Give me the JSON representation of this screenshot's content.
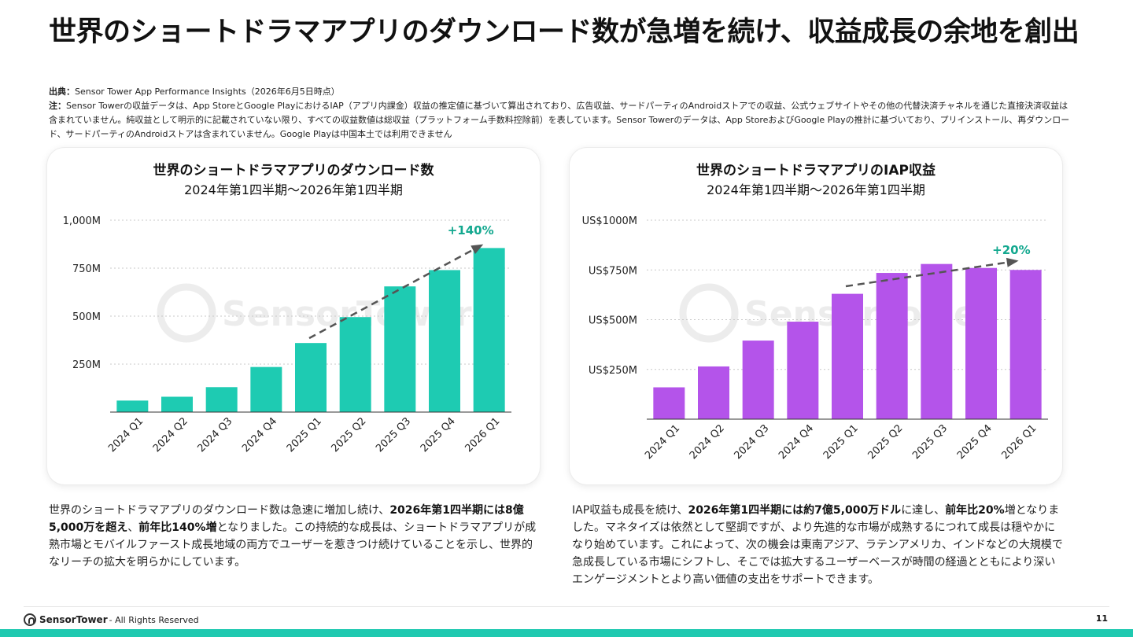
{
  "title": "世界のショートドラマアプリのダウンロード数が急増を続け、収益成長の余地を創出",
  "source": {
    "label": "出典：",
    "text": "Sensor Tower App Performance Insights（2026年6月5日時点）"
  },
  "note": {
    "label": "注：",
    "text": "Sensor Towerの収益データは、App StoreとGoogle PlayにおけるIAP（アプリ内課金）収益の推定値に基づいて算出されており、広告収益、サードパーティのAndroidストアでの収益、公式ウェブサイトやその他の代替決済チャネルを通じた直接決済収益は含まれていません。純収益として明示的に記載されていない限り、すべての収益数値は総収益（プラットフォーム手数料控除前）を表しています。Sensor Towerのデータは、App StoreおよびGoogle Playの推計に基づいており、プリインストール、再ダウンロード、サードパーティのAndroidストアは含まれていません。Google Playは中国本土では利用できません"
  },
  "chart_data": [
    {
      "type": "bar",
      "title": "世界のショートドラマアプリのダウンロード数",
      "subtitle": "2024年第1四半期〜2026年第1四半期",
      "categories": [
        "2024 Q1",
        "2024 Q2",
        "2024 Q3",
        "2024 Q4",
        "2025 Q1",
        "2025 Q2",
        "2025 Q3",
        "2025 Q4",
        "2026 Q1"
      ],
      "values": [
        60,
        80,
        130,
        235,
        360,
        495,
        655,
        740,
        855
      ],
      "ylim": [
        0,
        1000
      ],
      "yticks": [
        {
          "value": 250,
          "label": "250M"
        },
        {
          "value": 500,
          "label": "500M"
        },
        {
          "value": 750,
          "label": "750M"
        },
        {
          "value": 1000,
          "label": "1,000M"
        }
      ],
      "color": "#1ecbb2",
      "annotation": {
        "text": "+140%",
        "color": "#13a88f",
        "from_category": 4,
        "to_category": 8
      },
      "xlabel": "",
      "ylabel": "",
      "grid": true,
      "watermark": "SensorTower"
    },
    {
      "type": "bar",
      "title": "世界のショートドラマアプリのIAP収益",
      "subtitle": "2024年第1四半期〜2026年第1四半期",
      "categories": [
        "2024 Q1",
        "2024 Q2",
        "2024 Q3",
        "2024 Q4",
        "2025 Q1",
        "2025 Q2",
        "2025 Q3",
        "2025 Q4",
        "2026 Q1"
      ],
      "values": [
        160,
        265,
        395,
        490,
        630,
        735,
        780,
        760,
        750
      ],
      "ylim": [
        0,
        1000
      ],
      "yticks": [
        {
          "value": 250,
          "label": "US$250M"
        },
        {
          "value": 500,
          "label": "US$500M"
        },
        {
          "value": 750,
          "label": "US$750M"
        },
        {
          "value": 1000,
          "label": "US$1000M"
        }
      ],
      "color": "#b454ea",
      "annotation": {
        "text": "+20%",
        "color": "#13a88f",
        "from_category": 4,
        "to_category": 8
      },
      "xlabel": "",
      "ylabel": "",
      "grid": true,
      "watermark": "SensorTower"
    }
  ],
  "desc_left": {
    "p1": "世界のショートドラマアプリのダウンロード数は急速に増加し続け、",
    "b1": "2026年第1四半期には8億5,000万を超え",
    "p2": "、",
    "b2": "前年比140%増",
    "p3": "となりました。この持続的な成長は、ショートドラマアプリが成熟市場とモバイルファースト成長地域の両方でユーザーを惹きつけ続けていることを示し、世界的なリーチの拡大を明らかにしています。"
  },
  "desc_right": {
    "p1": "IAP収益も成長を続け、",
    "b1": "2026年第1四半期には約7億5,000万ドル",
    "p2": "に達し、",
    "b2": "前年比20%",
    "p3": "増となりました。マネタイズは依然として堅調ですが、より先進的な市場が成熟するにつれて成長は穏やかになり始めています。これによって、次の機会は東南アジア、ラテンアメリカ、インドなどの大規模で急成長している市場にシフトし、そこでは拡大するユーザーベースが時間の経過とともにより深いエンゲージメントとより高い価値の支出をサポートできます。"
  },
  "footer": {
    "brand": "SensorTower",
    "rights": "- All Rights Reserved",
    "page": "11"
  }
}
